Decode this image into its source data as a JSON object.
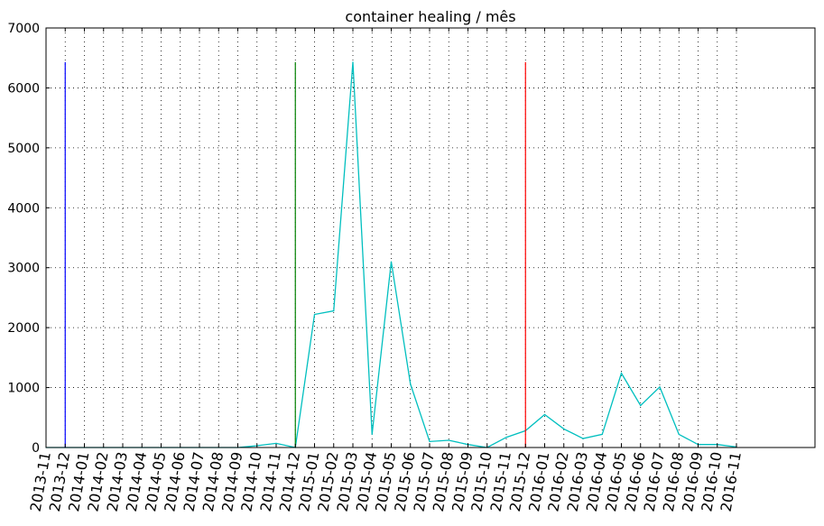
{
  "chart_data": {
    "type": "line",
    "title": "container healing / mês",
    "xlabel": "",
    "ylabel": "",
    "ylim": [
      0,
      7000
    ],
    "yticks": [
      0,
      1000,
      2000,
      3000,
      4000,
      5000,
      6000,
      7000
    ],
    "grid": true,
    "categories": [
      "2013-11",
      "2013-12",
      "2014-01",
      "2014-02",
      "2014-03",
      "2014-04",
      "2014-05",
      "2014-06",
      "2014-07",
      "2014-08",
      "2014-09",
      "2014-10",
      "2014-11",
      "2014-12",
      "2015-01",
      "2015-02",
      "2015-03",
      "2015-04",
      "2015-05",
      "2015-06",
      "2015-07",
      "2015-08",
      "2015-09",
      "2015-10",
      "2015-11",
      "2015-12",
      "2016-01",
      "2016-02",
      "2016-03",
      "2016-04",
      "2016-05",
      "2016-06",
      "2016-07",
      "2016-08",
      "2016-09",
      "2016-10",
      "2016-11"
    ],
    "series": [
      {
        "color": "#00bfbf",
        "values": [
          0,
          0,
          0,
          0,
          0,
          0,
          0,
          0,
          0,
          0,
          0,
          30,
          70,
          0,
          2220,
          2280,
          6430,
          220,
          3100,
          1060,
          100,
          120,
          50,
          0,
          170,
          280,
          550,
          310,
          150,
          220,
          1240,
          700,
          1010,
          220,
          50,
          50,
          10
        ]
      }
    ],
    "markers": [
      {
        "category": "2013-12",
        "color": "#0000ff",
        "height": 6430
      },
      {
        "category": "2014-12",
        "color": "#008000",
        "height": 6430
      },
      {
        "category": "2015-12",
        "color": "#ff0000",
        "height": 6430
      }
    ]
  }
}
